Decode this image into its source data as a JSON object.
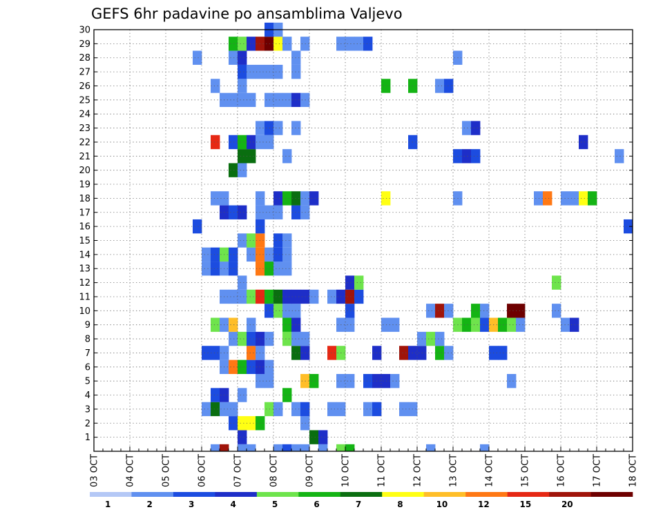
{
  "chart_data": {
    "type": "heatmap",
    "title": "GEFS 6hr padavine po ansamblima Valjevo",
    "ylabel": "",
    "xlabel": "",
    "y_members": [
      1,
      2,
      3,
      4,
      5,
      6,
      7,
      8,
      9,
      10,
      11,
      12,
      13,
      14,
      15,
      16,
      17,
      18,
      19,
      20,
      21,
      22,
      23,
      24,
      25,
      26,
      27,
      28,
      29,
      30
    ],
    "x_tick_labels": [
      "03 OCT",
      "04 OCT",
      "05 OCT",
      "06 OCT",
      "07 OCT",
      "08 OCT",
      "09 OCT",
      "10 OCT",
      "11 OCT",
      "12 OCT",
      "13 OCT",
      "14 OCT",
      "15 OCT",
      "16 OCT",
      "17 OCT",
      "18 OCT"
    ],
    "x_range_days": [
      0,
      15
    ],
    "step_hours": 6,
    "grid": true,
    "legend": {
      "position": "bottom",
      "labels": [
        "1",
        "2",
        "3",
        "4",
        "5",
        "6",
        "7",
        "8",
        "10",
        "12",
        "15",
        "20"
      ],
      "colors": [
        "#b4c8f6",
        "#6090f0",
        "#1c4ce0",
        "#1e2ec8",
        "#6ee44c",
        "#14b414",
        "#0a6e10",
        "#ffff14",
        "#ffbe28",
        "#ff7814",
        "#e62814",
        "#a0140a",
        "#6e0000"
      ]
    },
    "cells": [
      [
        3.25,
        0,
        1
      ],
      [
        3.5,
        0,
        11
      ],
      [
        4.0,
        0,
        1
      ],
      [
        4.25,
        0,
        1
      ],
      [
        5.0,
        0,
        1
      ],
      [
        5.25,
        0,
        2
      ],
      [
        5.5,
        0,
        1
      ],
      [
        5.75,
        0,
        1
      ],
      [
        6.25,
        0,
        1
      ],
      [
        6.75,
        0,
        4
      ],
      [
        7.0,
        0,
        5
      ],
      [
        9.25,
        0,
        1
      ],
      [
        10.75,
        0,
        1
      ],
      [
        4.0,
        1,
        3
      ],
      [
        6.0,
        1,
        6
      ],
      [
        6.25,
        1,
        3
      ],
      [
        3.75,
        2,
        2
      ],
      [
        4.0,
        2,
        7
      ],
      [
        4.25,
        2,
        7
      ],
      [
        4.5,
        2,
        5
      ],
      [
        5.75,
        2,
        1
      ],
      [
        3.0,
        3,
        1
      ],
      [
        3.25,
        3,
        6
      ],
      [
        3.5,
        3,
        1
      ],
      [
        3.75,
        3,
        1
      ],
      [
        4.75,
        3,
        4
      ],
      [
        5.0,
        3,
        1
      ],
      [
        5.5,
        3,
        1
      ],
      [
        5.75,
        3,
        2
      ],
      [
        6.5,
        3,
        1
      ],
      [
        6.75,
        3,
        1
      ],
      [
        7.5,
        3,
        1
      ],
      [
        7.75,
        3,
        2
      ],
      [
        8.5,
        3,
        1
      ],
      [
        8.75,
        3,
        1
      ],
      [
        3.25,
        4,
        2
      ],
      [
        3.5,
        4,
        3
      ],
      [
        4.0,
        4,
        1
      ],
      [
        5.25,
        4,
        5
      ],
      [
        4.5,
        5,
        1
      ],
      [
        4.75,
        5,
        1
      ],
      [
        5.75,
        5,
        8
      ],
      [
        6.0,
        5,
        5
      ],
      [
        6.75,
        5,
        1
      ],
      [
        7.0,
        5,
        1
      ],
      [
        7.5,
        5,
        2
      ],
      [
        7.75,
        5,
        3
      ],
      [
        8.0,
        5,
        3
      ],
      [
        8.25,
        5,
        1
      ],
      [
        11.5,
        5,
        1
      ],
      [
        3.5,
        6,
        1
      ],
      [
        3.75,
        6,
        9
      ],
      [
        4.0,
        6,
        5
      ],
      [
        4.25,
        6,
        2
      ],
      [
        4.5,
        6,
        3
      ],
      [
        4.75,
        6,
        1
      ],
      [
        3.0,
        7,
        2
      ],
      [
        3.25,
        7,
        2
      ],
      [
        3.5,
        7,
        1
      ],
      [
        4.25,
        7,
        9
      ],
      [
        4.5,
        7,
        1
      ],
      [
        5.5,
        7,
        6
      ],
      [
        5.75,
        7,
        3
      ],
      [
        6.5,
        7,
        10
      ],
      [
        6.75,
        7,
        4
      ],
      [
        7.75,
        7,
        3
      ],
      [
        8.5,
        7,
        11
      ],
      [
        8.75,
        7,
        3
      ],
      [
        9.0,
        7,
        3
      ],
      [
        9.5,
        7,
        5
      ],
      [
        9.75,
        7,
        1
      ],
      [
        11.0,
        7,
        2
      ],
      [
        11.25,
        7,
        2
      ],
      [
        3.75,
        8,
        1
      ],
      [
        4.0,
        8,
        4
      ],
      [
        4.25,
        8,
        2
      ],
      [
        4.5,
        8,
        3
      ],
      [
        4.75,
        8,
        1
      ],
      [
        5.25,
        8,
        4
      ],
      [
        5.5,
        8,
        1
      ],
      [
        5.75,
        8,
        1
      ],
      [
        9.0,
        8,
        1
      ],
      [
        9.25,
        8,
        4
      ],
      [
        9.5,
        8,
        1
      ],
      [
        3.25,
        9,
        4
      ],
      [
        3.5,
        9,
        1
      ],
      [
        3.75,
        9,
        8
      ],
      [
        4.25,
        9,
        1
      ],
      [
        5.25,
        9,
        5
      ],
      [
        5.5,
        9,
        3
      ],
      [
        6.75,
        9,
        1
      ],
      [
        7.0,
        9,
        1
      ],
      [
        8.0,
        9,
        1
      ],
      [
        8.25,
        9,
        1
      ],
      [
        10.0,
        9,
        4
      ],
      [
        10.25,
        9,
        5
      ],
      [
        10.5,
        9,
        4
      ],
      [
        10.75,
        9,
        2
      ],
      [
        11.0,
        9,
        8
      ],
      [
        11.25,
        9,
        5
      ],
      [
        11.5,
        9,
        4
      ],
      [
        11.75,
        9,
        1
      ],
      [
        13.0,
        9,
        1
      ],
      [
        13.25,
        9,
        3
      ],
      [
        4.75,
        10,
        2
      ],
      [
        5.0,
        10,
        4
      ],
      [
        5.25,
        10,
        1
      ],
      [
        5.5,
        10,
        1
      ],
      [
        7.0,
        10,
        2
      ],
      [
        9.25,
        10,
        1
      ],
      [
        9.5,
        10,
        11
      ],
      [
        9.75,
        10,
        1
      ],
      [
        10.5,
        10,
        5
      ],
      [
        10.75,
        10,
        1
      ],
      [
        11.5,
        10,
        12
      ],
      [
        11.75,
        10,
        12
      ],
      [
        12.75,
        10,
        1
      ],
      [
        3.5,
        11,
        1
      ],
      [
        3.75,
        11,
        1
      ],
      [
        4.0,
        11,
        1
      ],
      [
        4.25,
        11,
        4
      ],
      [
        4.5,
        11,
        10
      ],
      [
        4.75,
        11,
        5
      ],
      [
        5.0,
        11,
        6
      ],
      [
        5.25,
        11,
        3
      ],
      [
        5.5,
        11,
        3
      ],
      [
        5.75,
        11,
        3
      ],
      [
        6.0,
        11,
        1
      ],
      [
        6.5,
        11,
        1
      ],
      [
        6.75,
        11,
        3
      ],
      [
        7.0,
        11,
        11
      ],
      [
        7.25,
        11,
        2
      ],
      [
        4.0,
        12,
        1
      ],
      [
        7.0,
        12,
        3
      ],
      [
        7.25,
        12,
        4
      ],
      [
        12.75,
        12,
        4
      ],
      [
        3.0,
        13,
        1
      ],
      [
        3.25,
        13,
        2
      ],
      [
        3.5,
        13,
        1
      ],
      [
        3.75,
        13,
        2
      ],
      [
        4.5,
        13,
        9
      ],
      [
        4.75,
        13,
        5
      ],
      [
        5.0,
        13,
        1
      ],
      [
        5.25,
        13,
        1
      ],
      [
        3.0,
        14,
        1
      ],
      [
        3.25,
        14,
        2
      ],
      [
        3.5,
        14,
        4
      ],
      [
        3.75,
        14,
        2
      ],
      [
        4.25,
        14,
        1
      ],
      [
        4.5,
        14,
        9
      ],
      [
        4.75,
        14,
        1
      ],
      [
        5.0,
        14,
        2
      ],
      [
        5.25,
        14,
        1
      ],
      [
        4.0,
        15,
        1
      ],
      [
        4.25,
        15,
        4
      ],
      [
        4.5,
        15,
        9
      ],
      [
        5.0,
        15,
        2
      ],
      [
        5.25,
        15,
        1
      ],
      [
        2.75,
        16,
        2
      ],
      [
        4.5,
        16,
        2
      ],
      [
        14.75,
        16,
        2
      ],
      [
        3.5,
        17,
        3
      ],
      [
        3.75,
        17,
        2
      ],
      [
        4.0,
        17,
        3
      ],
      [
        4.5,
        17,
        1
      ],
      [
        4.75,
        17,
        1
      ],
      [
        5.0,
        17,
        1
      ],
      [
        5.5,
        17,
        2
      ],
      [
        5.75,
        17,
        1
      ],
      [
        3.25,
        18,
        1
      ],
      [
        3.5,
        18,
        1
      ],
      [
        4.5,
        18,
        1
      ],
      [
        5.0,
        18,
        3
      ],
      [
        5.25,
        18,
        5
      ],
      [
        5.5,
        18,
        6
      ],
      [
        5.75,
        18,
        1
      ],
      [
        6.0,
        18,
        3
      ],
      [
        8.0,
        18,
        7
      ],
      [
        10.0,
        18,
        1
      ],
      [
        12.25,
        18,
        1
      ],
      [
        12.5,
        18,
        9
      ],
      [
        13.0,
        18,
        1
      ],
      [
        13.25,
        18,
        1
      ],
      [
        13.5,
        18,
        7
      ],
      [
        13.75,
        18,
        5
      ],
      [
        3.75,
        20,
        6
      ],
      [
        4.0,
        20,
        1
      ],
      [
        4.0,
        21,
        6
      ],
      [
        4.25,
        21,
        6
      ],
      [
        5.25,
        21,
        1
      ],
      [
        10.0,
        21,
        2
      ],
      [
        10.25,
        21,
        3
      ],
      [
        10.5,
        21,
        2
      ],
      [
        14.5,
        21,
        1
      ],
      [
        3.25,
        22,
        10
      ],
      [
        3.75,
        22,
        2
      ],
      [
        4.0,
        22,
        5
      ],
      [
        4.25,
        22,
        3
      ],
      [
        4.5,
        22,
        1
      ],
      [
        4.75,
        22,
        1
      ],
      [
        8.75,
        22,
        2
      ],
      [
        13.5,
        22,
        3
      ],
      [
        4.5,
        23,
        1
      ],
      [
        4.75,
        23,
        2
      ],
      [
        5.0,
        23,
        1
      ],
      [
        5.5,
        23,
        1
      ],
      [
        10.25,
        23,
        1
      ],
      [
        10.5,
        23,
        3
      ],
      [
        3.5,
        25,
        1
      ],
      [
        3.75,
        25,
        1
      ],
      [
        4.0,
        25,
        1
      ],
      [
        4.25,
        25,
        1
      ],
      [
        4.75,
        25,
        1
      ],
      [
        5.0,
        25,
        1
      ],
      [
        5.25,
        25,
        1
      ],
      [
        5.5,
        25,
        3
      ],
      [
        5.75,
        25,
        1
      ],
      [
        3.25,
        26,
        1
      ],
      [
        4.0,
        26,
        1
      ],
      [
        8.0,
        26,
        5
      ],
      [
        8.75,
        26,
        5
      ],
      [
        9.5,
        26,
        1
      ],
      [
        9.75,
        26,
        2
      ],
      [
        4.0,
        27,
        2
      ],
      [
        4.25,
        27,
        1
      ],
      [
        4.5,
        27,
        1
      ],
      [
        4.75,
        27,
        1
      ],
      [
        5.0,
        27,
        1
      ],
      [
        5.5,
        27,
        1
      ],
      [
        2.75,
        28,
        1
      ],
      [
        3.75,
        28,
        1
      ],
      [
        4.0,
        28,
        3
      ],
      [
        5.5,
        28,
        1
      ],
      [
        10.0,
        28,
        1
      ],
      [
        3.75,
        29,
        5
      ],
      [
        4.0,
        29,
        4
      ],
      [
        4.25,
        29,
        3
      ],
      [
        4.5,
        29,
        11
      ],
      [
        4.75,
        29,
        12
      ],
      [
        5.0,
        29,
        7
      ],
      [
        5.25,
        29,
        1
      ],
      [
        5.75,
        29,
        1
      ],
      [
        6.75,
        29,
        1
      ],
      [
        7.0,
        29,
        1
      ],
      [
        7.25,
        29,
        1
      ],
      [
        7.5,
        29,
        2
      ],
      [
        4.75,
        30,
        2
      ],
      [
        5.0,
        30,
        1
      ]
    ]
  }
}
